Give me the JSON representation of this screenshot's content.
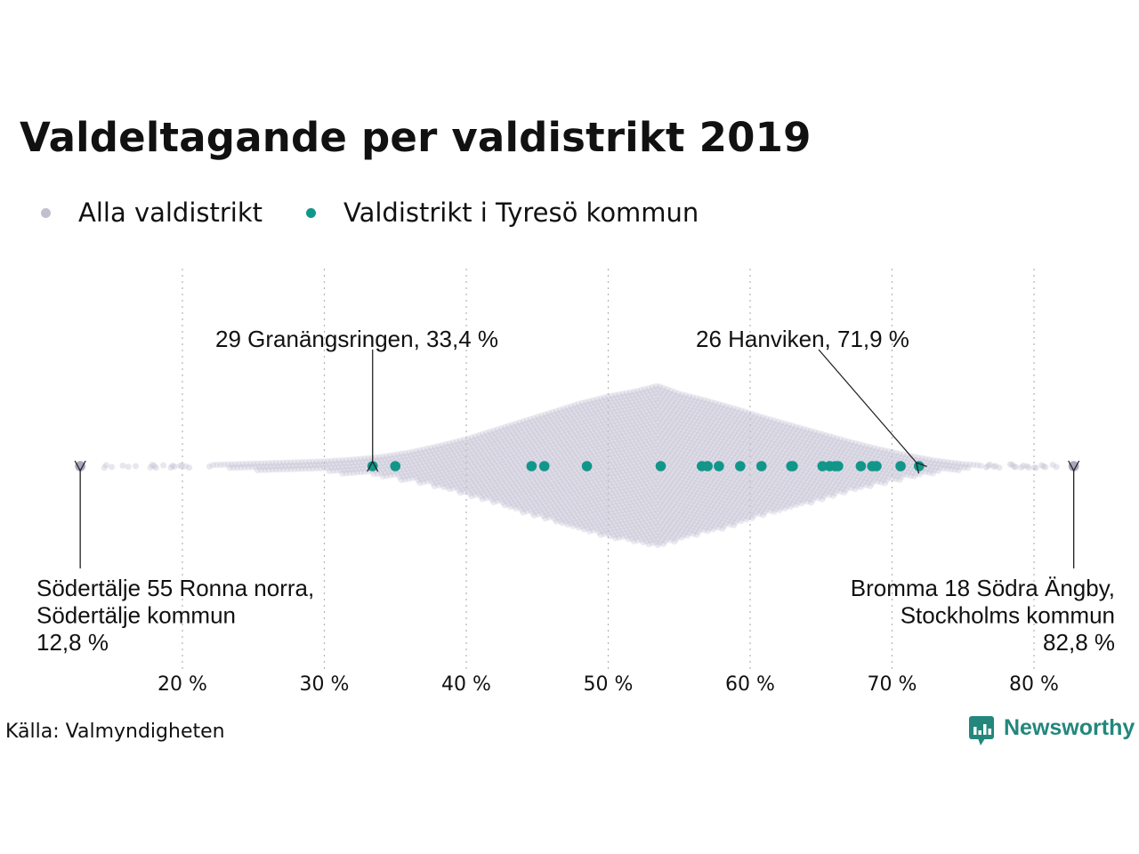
{
  "title": "Valdeltagande per valdistrikt 2019",
  "legend": [
    {
      "label": "Alla valdistrikt",
      "color": "#c2c0d0"
    },
    {
      "label": "Valdistrikt i Tyresö kommun",
      "color": "#12968a"
    }
  ],
  "source": "Källa: Valmyndigheten",
  "brand": {
    "name": "Newsworthy",
    "icon": "bar-chart-speech-bubble-icon",
    "color": "#23877c"
  },
  "chart_data": {
    "type": "scatter",
    "subtype": "beeswarm",
    "title": "Valdeltagande per valdistrikt 2019",
    "xlim": [
      12,
      85
    ],
    "x_ticks": [
      20,
      30,
      40,
      50,
      60,
      70,
      80
    ],
    "x_tick_labels": [
      "20 %",
      "30 %",
      "40 %",
      "50 %",
      "60 %",
      "70 %",
      "80 %"
    ],
    "grid": "vertical dotted",
    "legend_position": "top-left",
    "series": [
      {
        "name": "Alla valdistrikt",
        "color": "#c2c0d0",
        "distribution_profile": [
          [
            12.8,
            1
          ],
          [
            16,
            1
          ],
          [
            18,
            1
          ],
          [
            20,
            2
          ],
          [
            22,
            3
          ],
          [
            24,
            4
          ],
          [
            26,
            5
          ],
          [
            28,
            6
          ],
          [
            30,
            7
          ],
          [
            32,
            9
          ],
          [
            34,
            12
          ],
          [
            36,
            17
          ],
          [
            38,
            24
          ],
          [
            40,
            32
          ],
          [
            42,
            42
          ],
          [
            44,
            52
          ],
          [
            46,
            62
          ],
          [
            48,
            72
          ],
          [
            50,
            80
          ],
          [
            52,
            86
          ],
          [
            53.5,
            92
          ],
          [
            55,
            83
          ],
          [
            57,
            75
          ],
          [
            59,
            66
          ],
          [
            61,
            56
          ],
          [
            63,
            47
          ],
          [
            65,
            38
          ],
          [
            67,
            29
          ],
          [
            69,
            21
          ],
          [
            71,
            14
          ],
          [
            73,
            8
          ],
          [
            75,
            4
          ],
          [
            77,
            2
          ],
          [
            79,
            1
          ],
          [
            81,
            1
          ],
          [
            82.8,
            1
          ]
        ],
        "highlighted_extremes": [
          12.8,
          82.8
        ]
      },
      {
        "name": "Valdistrikt i Tyresö kommun",
        "color": "#12968a",
        "values": [
          33.4,
          35.0,
          44.6,
          45.5,
          48.5,
          53.7,
          56.6,
          57.0,
          57.8,
          59.3,
          60.8,
          62.9,
          63.0,
          65.1,
          65.6,
          66.0,
          66.2,
          67.8,
          68.6,
          68.9,
          70.6,
          71.9
        ]
      }
    ],
    "annotations": [
      {
        "id": "sodertalje",
        "x": 12.8,
        "lines": [
          "Södertälje 55 Ronna norra,",
          "Södertälje kommun",
          "12,8 %"
        ],
        "align": "left",
        "side": "below"
      },
      {
        "id": "bromma",
        "x": 82.8,
        "lines": [
          "Bromma 18 Södra Ängby,",
          "Stockholms kommun",
          "82,8 %"
        ],
        "align": "right",
        "side": "below"
      },
      {
        "id": "granangsringen",
        "x": 33.4,
        "lines": [
          "29 Granängsringen, 33,4 %"
        ],
        "align": "left",
        "side": "above"
      },
      {
        "id": "hanviken",
        "x": 71.9,
        "lines": [
          "26 Hanviken, 71,9 %"
        ],
        "align": "left",
        "side": "above"
      }
    ]
  }
}
